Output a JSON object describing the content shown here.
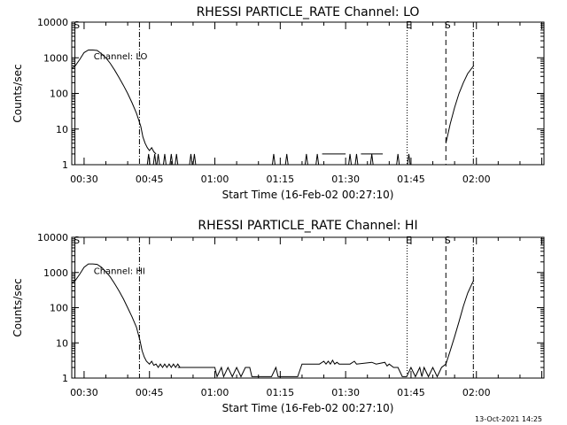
{
  "footer_timestamp": "13-Oct-2021 14:25",
  "chart_data": [
    {
      "type": "line",
      "title": "RHESSI PARTICLE_RATE Channel: LO",
      "xlabel": "Start Time (16-Feb-02 00:27:10)",
      "ylabel": "Counts/sec",
      "y_scale": "log",
      "ylim": [
        1,
        10000
      ],
      "y_ticks": [
        1,
        10,
        100,
        1000,
        10000
      ],
      "y_tick_labels": [
        "1",
        "10",
        "100",
        "1000",
        "10000"
      ],
      "xlim_minutes": [
        27.17,
        135.5
      ],
      "x_ticks_minutes": [
        30,
        45,
        60,
        75,
        90,
        105,
        120
      ],
      "x_tick_labels": [
        "00:30",
        "00:45",
        "01:00",
        "01:15",
        "01:30",
        "01:45",
        "02:00"
      ],
      "grid": false,
      "series_label": "Channel: LO",
      "markers": [
        {
          "label": "S",
          "minute": 27.9,
          "style": "solid"
        },
        {
          "label": "",
          "minute": 42.7,
          "style": "dashdot"
        },
        {
          "label": "E",
          "minute": 104.1,
          "style": "dotted"
        },
        {
          "label": "S",
          "minute": 113.0,
          "style": "dashed"
        },
        {
          "label": "",
          "minute": 119.3,
          "style": "dashdot"
        }
      ],
      "series": [
        {
          "style": "line",
          "points": [
            [
              27.2,
              500
            ],
            [
              28,
              600
            ],
            [
              29,
              900
            ],
            [
              30,
              1400
            ],
            [
              31,
              1650
            ],
            [
              32,
              1650
            ],
            [
              33,
              1600
            ],
            [
              34,
              1300
            ],
            [
              35,
              1000
            ],
            [
              36,
              700
            ],
            [
              37,
              450
            ],
            [
              38,
              280
            ],
            [
              39,
              170
            ],
            [
              40,
              100
            ],
            [
              41,
              55
            ],
            [
              42,
              28
            ],
            [
              43,
              12
            ],
            [
              43.5,
              6
            ],
            [
              44,
              4
            ],
            [
              44.5,
              3
            ],
            [
              45,
              2.5
            ],
            [
              45.5,
              3
            ],
            [
              46,
              2.3
            ],
            [
              46.5,
              2
            ]
          ]
        },
        {
          "style": "line",
          "points": [
            [
              113,
              4
            ],
            [
              114,
              14
            ],
            [
              115,
              40
            ],
            [
              116,
              100
            ],
            [
              117,
              200
            ],
            [
              118,
              360
            ],
            [
              119,
              520
            ],
            [
              119.4,
              600
            ]
          ]
        },
        {
          "style": "spikes",
          "points": [
            [
              44.8,
              2
            ],
            [
              46.2,
              2
            ],
            [
              47,
              2
            ],
            [
              48.5,
              2
            ],
            [
              50,
              2
            ],
            [
              51.2,
              2
            ],
            [
              54.5,
              2
            ],
            [
              55.3,
              2
            ],
            [
              73.5,
              2
            ],
            [
              76.5,
              2
            ],
            [
              81,
              2
            ],
            [
              83.5,
              2
            ],
            [
              91,
              2
            ],
            [
              92.5,
              2
            ],
            [
              96,
              2
            ],
            [
              102,
              2
            ],
            [
              104.5,
              2
            ]
          ]
        },
        {
          "style": "line",
          "points": [
            [
              84.6,
              2
            ],
            [
              90,
              2
            ]
          ]
        },
        {
          "style": "line",
          "points": [
            [
              93.5,
              2
            ],
            [
              94.8,
              2
            ],
            [
              95.5,
              2
            ],
            [
              96.5,
              2
            ],
            [
              97.5,
              2
            ],
            [
              98.5,
              2
            ]
          ]
        }
      ]
    },
    {
      "type": "line",
      "title": "RHESSI PARTICLE_RATE Channel: HI",
      "xlabel": "Start Time (16-Feb-02 00:27:10)",
      "ylabel": "Counts/sec",
      "y_scale": "log",
      "ylim": [
        1,
        10000
      ],
      "y_ticks": [
        1,
        10,
        100,
        1000,
        10000
      ],
      "y_tick_labels": [
        "1",
        "10",
        "100",
        "1000",
        "10000"
      ],
      "xlim_minutes": [
        27.17,
        135.5
      ],
      "x_ticks_minutes": [
        30,
        45,
        60,
        75,
        90,
        105,
        120
      ],
      "x_tick_labels": [
        "00:30",
        "00:45",
        "01:00",
        "01:15",
        "01:30",
        "01:45",
        "02:00"
      ],
      "grid": false,
      "series_label": "Channel: HI",
      "markers": [
        {
          "label": "S",
          "minute": 27.9,
          "style": "solid"
        },
        {
          "label": "",
          "minute": 42.7,
          "style": "dashdot"
        },
        {
          "label": "E",
          "minute": 104.1,
          "style": "dotted"
        },
        {
          "label": "S",
          "minute": 113.0,
          "style": "dashed"
        },
        {
          "label": "",
          "minute": 119.3,
          "style": "dashdot"
        }
      ],
      "series": [
        {
          "style": "line",
          "points": [
            [
              27.2,
              500
            ],
            [
              28,
              600
            ],
            [
              29,
              900
            ],
            [
              30,
              1400
            ],
            [
              31,
              1750
            ],
            [
              32,
              1750
            ],
            [
              33,
              1700
            ],
            [
              34,
              1400
            ],
            [
              35,
              1050
            ],
            [
              36,
              750
            ],
            [
              37,
              480
            ],
            [
              38,
              300
            ],
            [
              39,
              180
            ],
            [
              40,
              100
            ],
            [
              41,
              55
            ],
            [
              42,
              28
            ],
            [
              42.8,
              12
            ],
            [
              43.3,
              6
            ],
            [
              43.8,
              4
            ],
            [
              44.3,
              3
            ],
            [
              45,
              2.5
            ],
            [
              45.5,
              3
            ],
            [
              46,
              2.3
            ],
            [
              46.5,
              2.5
            ],
            [
              47,
              2
            ],
            [
              47.5,
              2.5
            ],
            [
              48,
              2
            ],
            [
              48.5,
              2.5
            ],
            [
              49,
              2
            ],
            [
              49.5,
              2.5
            ],
            [
              50,
              2
            ],
            [
              50.5,
              2.5
            ],
            [
              51,
              2
            ],
            [
              51.5,
              2.5
            ],
            [
              52,
              2
            ],
            [
              60,
              2
            ],
            [
              60.5,
              1.1
            ],
            [
              61.5,
              2
            ],
            [
              62,
              1.1
            ],
            [
              63,
              2
            ],
            [
              64,
              1.1
            ],
            [
              65,
              2
            ],
            [
              66,
              1.1
            ],
            [
              67,
              2
            ],
            [
              68,
              2
            ],
            [
              68.5,
              1.1
            ],
            [
              69,
              1.1
            ],
            [
              73,
              1.1
            ],
            [
              74,
              2
            ],
            [
              74.5,
              1.1
            ],
            [
              75,
              1.1
            ],
            [
              79,
              1.1
            ],
            [
              80,
              2.5
            ],
            [
              84,
              2.5
            ],
            [
              85,
              3
            ],
            [
              85.5,
              2.5
            ],
            [
              86,
              3
            ],
            [
              86.5,
              2.5
            ],
            [
              87,
              3.2
            ],
            [
              87.5,
              2.5
            ],
            [
              88,
              2.8
            ],
            [
              88.5,
              2.5
            ],
            [
              91,
              2.5
            ],
            [
              92,
              3
            ],
            [
              92.5,
              2.5
            ],
            [
              96,
              2.8
            ],
            [
              97,
              2.5
            ],
            [
              99,
              2.8
            ],
            [
              99.5,
              2.2
            ],
            [
              100,
              2.5
            ],
            [
              101,
              2
            ],
            [
              102,
              2
            ],
            [
              103,
              1.1
            ],
            [
              104,
              1.1
            ],
            [
              105,
              2
            ],
            [
              106,
              1.1
            ],
            [
              107,
              2
            ],
            [
              107.5,
              1.1
            ],
            [
              108,
              2
            ],
            [
              109,
              1.1
            ],
            [
              110,
              2
            ],
            [
              111,
              1.1
            ],
            [
              112,
              2
            ],
            [
              113,
              2.5
            ],
            [
              114,
              6
            ],
            [
              115,
              15
            ],
            [
              116,
              40
            ],
            [
              117,
              110
            ],
            [
              118,
              260
            ],
            [
              119,
              480
            ],
            [
              119.4,
              600
            ]
          ]
        },
        {
          "style": "line",
          "points": [
            [
              51.5,
              2
            ],
            [
              55,
              2
            ],
            [
              60,
              2
            ]
          ]
        }
      ]
    }
  ]
}
